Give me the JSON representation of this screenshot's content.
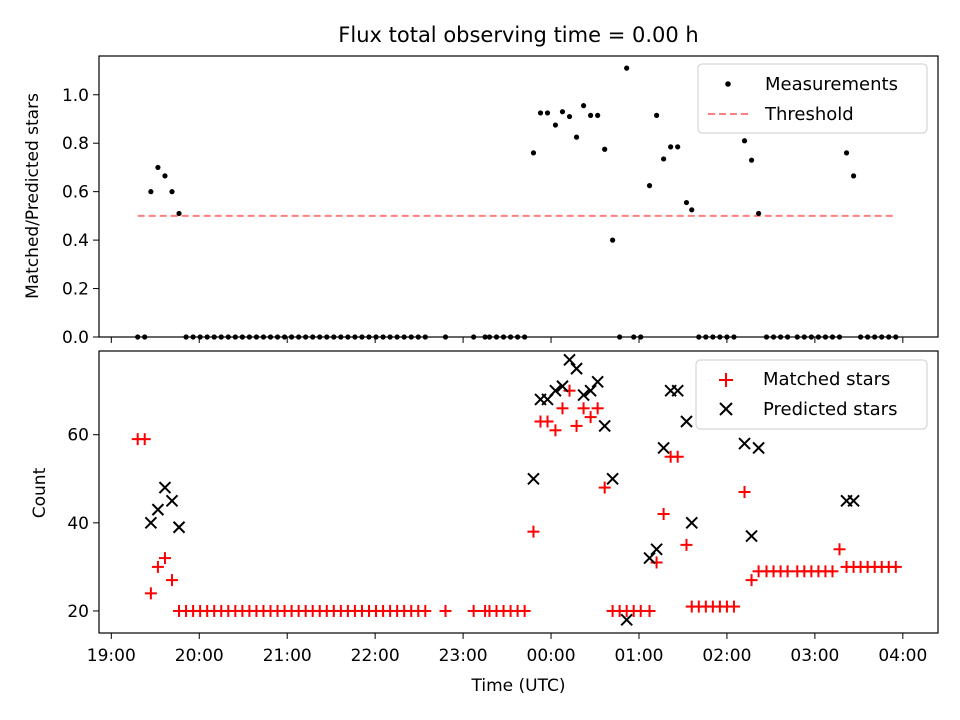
{
  "chart_data": [
    {
      "type": "scatter",
      "title": "Flux total observing time = 0.00 h",
      "xlabel": "",
      "ylabel": "Matched/Predicted stars",
      "xlim_hours": [
        18.86,
        28.4
      ],
      "ylim": [
        0,
        1.16
      ],
      "yticks": [
        0.0,
        0.2,
        0.4,
        0.6,
        0.8,
        1.0
      ],
      "ytick_labels": [
        "0.0",
        "0.2",
        "0.4",
        "0.6",
        "0.8",
        "1.0"
      ],
      "legend": {
        "position": "top-right",
        "entries": [
          "Measurements",
          "Threshold"
        ]
      },
      "threshold": {
        "value": 0.5,
        "x_start": 19.3,
        "x_end": 27.92,
        "color": "#ff7f7f"
      },
      "series": [
        {
          "name": "Measurements",
          "marker": "dot",
          "color": "#000000",
          "x": [
            19.3,
            19.38,
            19.45,
            19.53,
            19.61,
            19.69,
            19.77,
            19.85,
            19.93,
            20.01,
            20.09,
            20.17,
            20.25,
            20.33,
            20.41,
            20.49,
            20.57,
            20.65,
            20.73,
            20.81,
            20.89,
            20.97,
            21.05,
            21.13,
            21.21,
            21.29,
            21.37,
            21.45,
            21.53,
            21.61,
            21.69,
            21.77,
            21.85,
            21.93,
            22.01,
            22.09,
            22.17,
            22.25,
            22.33,
            22.41,
            22.49,
            22.57,
            22.8,
            23.12,
            23.25,
            23.3,
            23.38,
            23.46,
            23.54,
            23.62,
            23.7,
            23.8,
            23.88,
            23.96,
            24.05,
            24.13,
            24.21,
            24.29,
            24.37,
            24.45,
            24.53,
            24.61,
            24.7,
            24.78,
            24.86,
            24.94,
            25.02,
            25.12,
            25.2,
            25.28,
            25.36,
            25.44,
            25.54,
            25.6,
            25.68,
            25.76,
            25.84,
            25.92,
            26.0,
            26.08,
            26.2,
            26.28,
            26.36,
            26.45,
            26.53,
            26.61,
            26.69,
            26.8,
            26.88,
            26.96,
            27.04,
            27.12,
            27.2,
            27.28,
            27.36,
            27.44,
            27.52,
            27.6,
            27.68,
            27.76,
            27.84,
            27.92
          ],
          "y": [
            0,
            0,
            0.6,
            0.7,
            0.665,
            0.6,
            0.51,
            0,
            0,
            0,
            0,
            0,
            0,
            0,
            0,
            0,
            0,
            0,
            0,
            0,
            0,
            0,
            0,
            0,
            0,
            0,
            0,
            0,
            0,
            0,
            0,
            0,
            0,
            0,
            0,
            0,
            0,
            0,
            0,
            0,
            0,
            0,
            0,
            0,
            0,
            0,
            0,
            0,
            0,
            0,
            0,
            0.76,
            0.925,
            0.925,
            0.875,
            0.93,
            0.91,
            0.825,
            0.955,
            0.915,
            0.915,
            0.775,
            0.4,
            0,
            1.11,
            0,
            0,
            0.625,
            0.915,
            0.735,
            0.785,
            0.785,
            0.555,
            0.525,
            0,
            0,
            0,
            0,
            0,
            0,
            0.81,
            0.73,
            0.51,
            0,
            0,
            0,
            0,
            0,
            0,
            0,
            0,
            0,
            0,
            0,
            0.76,
            0.665,
            0,
            0,
            0,
            0,
            0,
            0
          ]
        }
      ]
    },
    {
      "type": "scatter",
      "title": "",
      "xlabel": "Time (UTC)",
      "ylabel": "Count",
      "xlim_hours": [
        18.86,
        28.4
      ],
      "ylim": [
        15.0,
        79.0
      ],
      "yticks": [
        20,
        40,
        60
      ],
      "ytick_labels": [
        "20",
        "40",
        "60"
      ],
      "xticks_hours": [
        19,
        20,
        21,
        22,
        23,
        24,
        25,
        26,
        27,
        28
      ],
      "xtick_labels": [
        "19:00",
        "20:00",
        "21:00",
        "22:00",
        "23:00",
        "00:00",
        "01:00",
        "02:00",
        "03:00",
        "04:00"
      ],
      "legend": {
        "position": "top-right",
        "entries": [
          "Matched stars",
          "Predicted stars"
        ]
      },
      "series": [
        {
          "name": "Matched stars",
          "marker": "plus",
          "color": "#ff0000",
          "x": [
            19.3,
            19.38,
            19.45,
            19.53,
            19.61,
            19.69,
            19.77,
            19.85,
            19.93,
            20.01,
            20.09,
            20.17,
            20.25,
            20.33,
            20.41,
            20.49,
            20.57,
            20.65,
            20.73,
            20.81,
            20.89,
            20.97,
            21.05,
            21.13,
            21.21,
            21.29,
            21.37,
            21.45,
            21.53,
            21.61,
            21.69,
            21.77,
            21.85,
            21.93,
            22.01,
            22.09,
            22.17,
            22.25,
            22.33,
            22.41,
            22.49,
            22.57,
            22.8,
            23.12,
            23.25,
            23.3,
            23.38,
            23.46,
            23.54,
            23.62,
            23.7,
            23.8,
            23.88,
            23.96,
            24.05,
            24.13,
            24.21,
            24.29,
            24.37,
            24.45,
            24.53,
            24.61,
            24.7,
            24.78,
            24.86,
            24.94,
            25.02,
            25.12,
            25.2,
            25.28,
            25.36,
            25.44,
            25.54,
            25.6,
            25.68,
            25.76,
            25.84,
            25.92,
            26.0,
            26.08,
            26.2,
            26.28,
            26.36,
            26.45,
            26.53,
            26.61,
            26.69,
            26.8,
            26.88,
            26.96,
            27.04,
            27.12,
            27.2,
            27.28,
            27.36,
            27.44,
            27.52,
            27.6,
            27.68,
            27.76,
            27.84,
            27.92
          ],
          "y": [
            59,
            59,
            24,
            30,
            32,
            27,
            20,
            20,
            20,
            20,
            20,
            20,
            20,
            20,
            20,
            20,
            20,
            20,
            20,
            20,
            20,
            20,
            20,
            20,
            20,
            20,
            20,
            20,
            20,
            20,
            20,
            20,
            20,
            20,
            20,
            20,
            20,
            20,
            20,
            20,
            20,
            20,
            20,
            20,
            20,
            20,
            20,
            20,
            20,
            20,
            20,
            38,
            63,
            63,
            61,
            66,
            70,
            62,
            66,
            64,
            66,
            48,
            20,
            20,
            20,
            20,
            20,
            20,
            31,
            42,
            55,
            55,
            35,
            21,
            21,
            21,
            21,
            21,
            21,
            21,
            47,
            27,
            29,
            29,
            29,
            29,
            29,
            29,
            29,
            29,
            29,
            29,
            29,
            34,
            30,
            30,
            30,
            30,
            30,
            30,
            30,
            30
          ]
        },
        {
          "name": "Predicted stars",
          "marker": "x",
          "color": "#000000",
          "x": [
            19.45,
            19.53,
            19.61,
            19.69,
            19.77,
            23.8,
            23.88,
            23.96,
            24.05,
            24.13,
            24.21,
            24.29,
            24.37,
            24.45,
            24.53,
            24.61,
            24.7,
            24.86,
            25.12,
            25.2,
            25.28,
            25.36,
            25.44,
            25.54,
            25.6,
            26.2,
            26.28,
            26.36,
            27.36,
            27.44
          ],
          "y": [
            40,
            43,
            48,
            45,
            39,
            50,
            68,
            68,
            70,
            71,
            77,
            75,
            69,
            70,
            72,
            62,
            50,
            18,
            32,
            34,
            57,
            70,
            70,
            63,
            40,
            58,
            37,
            57,
            45,
            45
          ]
        }
      ]
    }
  ]
}
